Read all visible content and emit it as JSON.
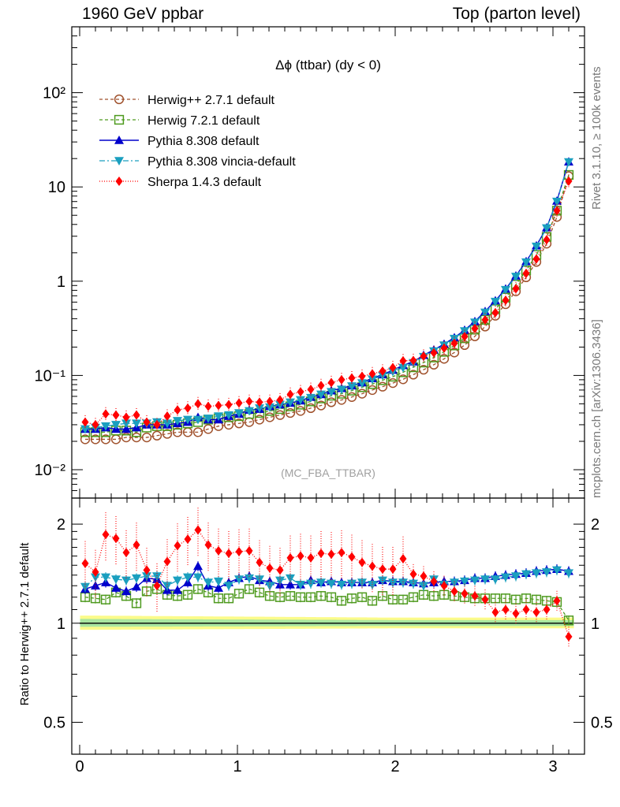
{
  "header": {
    "left": "1960 GeV ppbar",
    "right": "Top (parton level)"
  },
  "side": {
    "events": "Rivet 3.1.10, ≥ 100k events",
    "url": "mcplots.cern.ch [arXiv:1306.3436]"
  },
  "plot_title": "Δϕ (ttbar) (dy < 0)",
  "watermark": "(MC_FBA_TTBAR)",
  "ratio_ylabel": "Ratio to Herwig++ 2.7.1 default",
  "colors": {
    "herwigpp": "#a0522d",
    "herwig7": "#4e9a1e",
    "pythia": "#0000cc",
    "vincia": "#1a9fbf",
    "sherpa": "#ff0000"
  },
  "chart_data": [
    {
      "type": "line",
      "log_y": true,
      "xlim": [
        -0.05,
        3.2
      ],
      "ylim": [
        0.005,
        500
      ],
      "y_ticks": [
        "10⁻²",
        "10⁻¹",
        "1",
        "10",
        "10²"
      ],
      "y_tick_values": [
        0.01,
        0.1,
        1,
        10,
        100
      ],
      "legend": "top-left",
      "x": [
        0.035,
        0.1,
        0.165,
        0.23,
        0.295,
        0.36,
        0.425,
        0.49,
        0.555,
        0.62,
        0.685,
        0.75,
        0.815,
        0.88,
        0.945,
        1.01,
        1.075,
        1.14,
        1.205,
        1.27,
        1.335,
        1.4,
        1.465,
        1.53,
        1.595,
        1.66,
        1.725,
        1.79,
        1.855,
        1.92,
        1.985,
        2.05,
        2.115,
        2.18,
        2.245,
        2.31,
        2.375,
        2.44,
        2.505,
        2.57,
        2.635,
        2.7,
        2.765,
        2.83,
        2.895,
        2.96,
        3.025,
        3.1
      ],
      "series": [
        {
          "name": "Herwig++ 2.7.1 default",
          "marker": "circle-open",
          "values": [
            0.021,
            0.021,
            0.021,
            0.021,
            0.022,
            0.022,
            0.022,
            0.023,
            0.024,
            0.025,
            0.025,
            0.025,
            0.027,
            0.029,
            0.03,
            0.031,
            0.032,
            0.034,
            0.036,
            0.038,
            0.04,
            0.042,
            0.045,
            0.048,
            0.052,
            0.055,
            0.059,
            0.064,
            0.07,
            0.076,
            0.083,
            0.091,
            0.102,
            0.115,
            0.13,
            0.15,
            0.175,
            0.21,
            0.26,
            0.33,
            0.43,
            0.57,
            0.78,
            1.1,
            1.6,
            2.5,
            4.8,
            13.0
          ]
        },
        {
          "name": "Herwig 7.2.1 default",
          "marker": "square-open",
          "values": [
            0.025,
            0.025,
            0.025,
            0.026,
            0.026,
            0.025,
            0.028,
            0.029,
            0.029,
            0.03,
            0.031,
            0.032,
            0.034,
            0.035,
            0.036,
            0.037,
            0.039,
            0.04,
            0.042,
            0.044,
            0.047,
            0.049,
            0.053,
            0.057,
            0.061,
            0.064,
            0.069,
            0.075,
            0.081,
            0.089,
            0.097,
            0.108,
            0.122,
            0.137,
            0.155,
            0.178,
            0.208,
            0.248,
            0.306,
            0.389,
            0.505,
            0.67,
            0.92,
            1.3,
            1.9,
            2.95,
            5.6,
            13.4
          ]
        },
        {
          "name": "Pythia 8.308 default",
          "marker": "triangle-up",
          "values": [
            0.027,
            0.027,
            0.028,
            0.027,
            0.027,
            0.028,
            0.03,
            0.03,
            0.03,
            0.031,
            0.032,
            0.036,
            0.034,
            0.034,
            0.037,
            0.039,
            0.043,
            0.044,
            0.047,
            0.049,
            0.051,
            0.054,
            0.059,
            0.063,
            0.069,
            0.073,
            0.078,
            0.084,
            0.093,
            0.102,
            0.114,
            0.128,
            0.14,
            0.164,
            0.187,
            0.215,
            0.252,
            0.303,
            0.374,
            0.478,
            0.622,
            0.829,
            1.14,
            1.62,
            2.38,
            3.7,
            7.1,
            18.5
          ]
        },
        {
          "name": "Pythia 8.308 vincia-default",
          "marker": "triangle-down",
          "values": [
            0.027,
            0.028,
            0.029,
            0.03,
            0.031,
            0.031,
            0.031,
            0.032,
            0.031,
            0.033,
            0.034,
            0.034,
            0.035,
            0.037,
            0.038,
            0.04,
            0.042,
            0.045,
            0.046,
            0.049,
            0.052,
            0.055,
            0.058,
            0.063,
            0.067,
            0.071,
            0.077,
            0.083,
            0.091,
            0.1,
            0.11,
            0.121,
            0.136,
            0.158,
            0.181,
            0.209,
            0.246,
            0.296,
            0.366,
            0.466,
            0.607,
            0.812,
            1.12,
            1.59,
            2.34,
            3.66,
            7.0,
            18.4
          ]
        },
        {
          "name": "Sherpa 1.4.3 default",
          "marker": "diamond",
          "values": [
            0.032,
            0.03,
            0.039,
            0.038,
            0.036,
            0.038,
            0.032,
            0.03,
            0.037,
            0.043,
            0.045,
            0.05,
            0.047,
            0.048,
            0.049,
            0.051,
            0.053,
            0.052,
            0.053,
            0.055,
            0.063,
            0.067,
            0.071,
            0.078,
            0.084,
            0.09,
            0.094,
            0.098,
            0.104,
            0.111,
            0.121,
            0.143,
            0.144,
            0.16,
            0.174,
            0.195,
            0.219,
            0.258,
            0.315,
            0.389,
            0.463,
            0.627,
            0.832,
            1.21,
            1.72,
            2.75,
            5.6,
            11.5
          ]
        }
      ]
    },
    {
      "type": "line",
      "log_y": true,
      "xlim": [
        -0.05,
        3.2
      ],
      "ylim": [
        0.4,
        2.4
      ],
      "x_ticks": [
        "0",
        "1",
        "2",
        "3"
      ],
      "x_tick_values": [
        0,
        1,
        2,
        3
      ],
      "y_ticks": [
        "0.5",
        "1",
        "2"
      ],
      "y_tick_values": [
        0.5,
        1,
        2
      ],
      "reference": 1,
      "x": [
        0.035,
        0.1,
        0.165,
        0.23,
        0.295,
        0.36,
        0.425,
        0.49,
        0.555,
        0.62,
        0.685,
        0.75,
        0.815,
        0.88,
        0.945,
        1.01,
        1.075,
        1.14,
        1.205,
        1.27,
        1.335,
        1.4,
        1.465,
        1.53,
        1.595,
        1.66,
        1.725,
        1.79,
        1.855,
        1.92,
        1.985,
        2.05,
        2.115,
        2.18,
        2.245,
        2.31,
        2.375,
        2.44,
        2.505,
        2.57,
        2.635,
        2.7,
        2.765,
        2.83,
        2.895,
        2.96,
        3.025,
        3.1
      ],
      "series": [
        {
          "name": "Herwig 7.2.1 default",
          "values": [
            1.2,
            1.19,
            1.18,
            1.24,
            1.21,
            1.15,
            1.25,
            1.27,
            1.22,
            1.21,
            1.22,
            1.27,
            1.24,
            1.19,
            1.19,
            1.23,
            1.27,
            1.24,
            1.21,
            1.2,
            1.21,
            1.2,
            1.2,
            1.21,
            1.2,
            1.17,
            1.19,
            1.2,
            1.17,
            1.21,
            1.18,
            1.18,
            1.2,
            1.22,
            1.21,
            1.22,
            1.21,
            1.2,
            1.19,
            1.19,
            1.19,
            1.19,
            1.18,
            1.19,
            1.18,
            1.17,
            1.16,
            1.02
          ]
        },
        {
          "name": "Pythia 8.308 default",
          "values": [
            1.27,
            1.3,
            1.33,
            1.28,
            1.25,
            1.29,
            1.37,
            1.36,
            1.26,
            1.26,
            1.33,
            1.49,
            1.3,
            1.28,
            1.33,
            1.37,
            1.39,
            1.35,
            1.34,
            1.31,
            1.31,
            1.31,
            1.35,
            1.33,
            1.34,
            1.33,
            1.33,
            1.33,
            1.33,
            1.35,
            1.34,
            1.34,
            1.33,
            1.32,
            1.33,
            1.34,
            1.34,
            1.35,
            1.37,
            1.37,
            1.39,
            1.4,
            1.41,
            1.42,
            1.44,
            1.45,
            1.46,
            1.44
          ]
        },
        {
          "name": "Pythia 8.308 vincia-default",
          "values": [
            1.29,
            1.38,
            1.38,
            1.36,
            1.35,
            1.37,
            1.39,
            1.39,
            1.3,
            1.35,
            1.38,
            1.38,
            1.33,
            1.34,
            1.3,
            1.36,
            1.37,
            1.36,
            1.3,
            1.35,
            1.37,
            1.31,
            1.32,
            1.33,
            1.32,
            1.31,
            1.32,
            1.33,
            1.31,
            1.35,
            1.33,
            1.33,
            1.32,
            1.3,
            1.36,
            1.31,
            1.33,
            1.34,
            1.35,
            1.36,
            1.36,
            1.38,
            1.39,
            1.41,
            1.42,
            1.43,
            1.45,
            1.42
          ]
        },
        {
          "name": "Sherpa 1.4.3 default",
          "values": [
            1.52,
            1.43,
            1.86,
            1.81,
            1.64,
            1.73,
            1.45,
            1.3,
            1.54,
            1.72,
            1.8,
            1.92,
            1.73,
            1.66,
            1.63,
            1.65,
            1.66,
            1.53,
            1.47,
            1.45,
            1.58,
            1.6,
            1.58,
            1.63,
            1.62,
            1.64,
            1.59,
            1.53,
            1.49,
            1.46,
            1.46,
            1.57,
            1.41,
            1.39,
            1.34,
            1.3,
            1.25,
            1.23,
            1.21,
            1.18,
            1.08,
            1.1,
            1.07,
            1.1,
            1.08,
            1.1,
            1.17,
            0.91
          ]
        }
      ]
    }
  ]
}
